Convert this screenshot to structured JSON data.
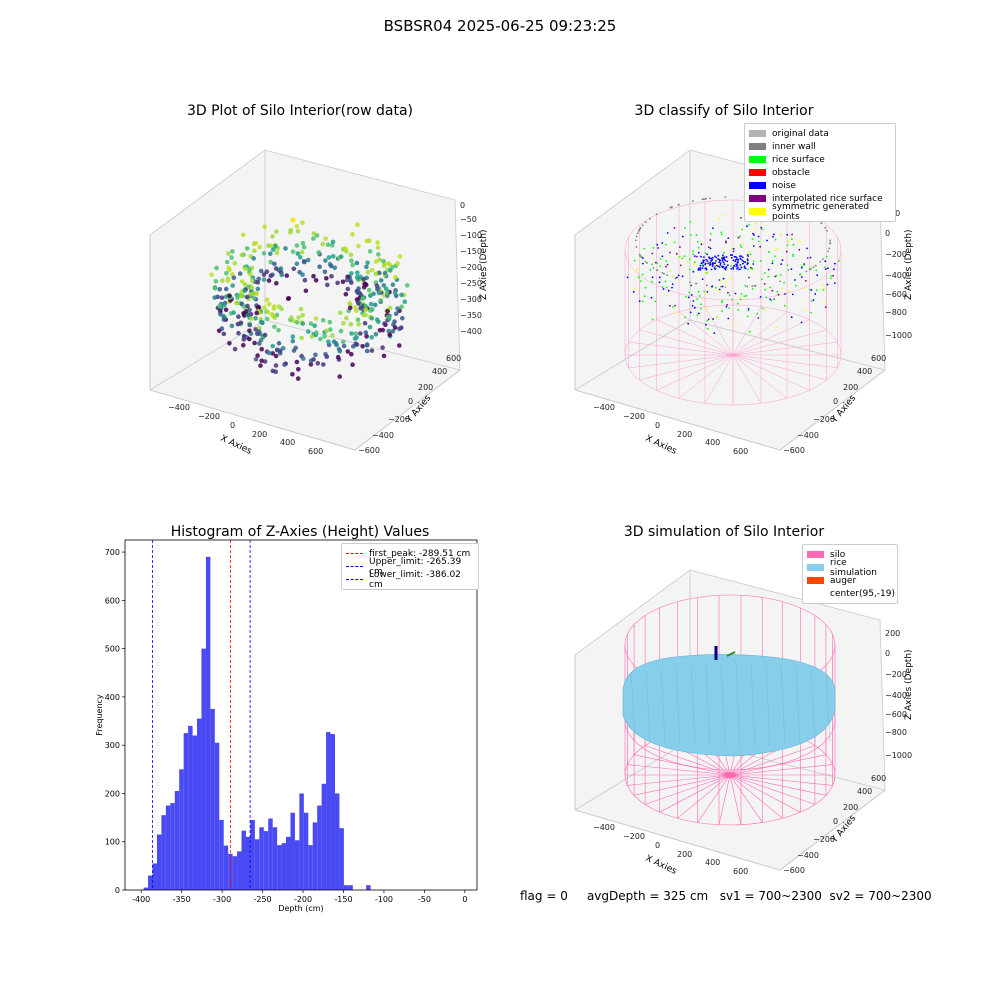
{
  "figure": {
    "suptitle": "BSBSR04 2025-06-25 09:23:25",
    "footer": {
      "flag": "flag = 0",
      "avg": "avgDepth = 325 cm",
      "sv1": "sv1 = 700~2300",
      "sv2": "sv2 = 700~2300"
    }
  },
  "colors": {
    "histogram_bar": "#4a4af5",
    "peak_line": "#ff0000",
    "limit_line": "#0000ff",
    "silo": "#ff69b4",
    "rice_sim": "#87ceeb",
    "auger": "#ff4500"
  },
  "chart_data": [
    {
      "type": "scatter",
      "title": "3D Plot of Silo Interior(row data)",
      "xlabel": "X Axies",
      "ylabel": "Y Axies",
      "zlabel": "Z Axies (Depth)",
      "xticks": [
        "−400",
        "−200",
        "0",
        "200",
        "400",
        "600"
      ],
      "yticks": [
        "−600",
        "−400",
        "−200",
        "0",
        "200",
        "400",
        "600"
      ],
      "zticks": [
        "−400",
        "−350",
        "−300",
        "−250",
        "−200",
        "−150",
        "−100",
        "−50",
        "0"
      ],
      "colormap": "viridis"
    },
    {
      "type": "scatter",
      "title": "3D classify of Silo Interior",
      "xlabel": "X Axies",
      "ylabel": "Y Axies",
      "zlabel": "Z Axies (Depth)",
      "xticks": [
        "−400",
        "−200",
        "0",
        "200",
        "400",
        "600"
      ],
      "yticks": [
        "−600",
        "−400",
        "−200",
        "0",
        "200",
        "400",
        "600"
      ],
      "zticks": [
        "−1000",
        "−800",
        "−600",
        "−400",
        "−200",
        "0",
        "200"
      ],
      "legend": [
        {
          "label": "original data",
          "color": "#b3b3b3"
        },
        {
          "label": "inner wall",
          "color": "#808080"
        },
        {
          "label": "rice surface",
          "color": "#00ff00"
        },
        {
          "label": "obstacle",
          "color": "#ff0000"
        },
        {
          "label": "noise",
          "color": "#0000ff"
        },
        {
          "label": "interpolated rice surface",
          "color": "#800080"
        },
        {
          "label": "symmetric generated points",
          "color": "#ffff00"
        }
      ]
    },
    {
      "type": "bar",
      "title": "Histogram of Z-Axies (Height) Values",
      "xlabel": "Depth (cm)",
      "ylabel": "Frequency",
      "xlim": [
        -420,
        15
      ],
      "ylim": [
        0,
        725
      ],
      "xticks": [
        -400,
        -350,
        -300,
        -250,
        -200,
        -150,
        -100,
        -50,
        0
      ],
      "yticks": [
        0,
        100,
        200,
        300,
        400,
        500,
        600,
        700
      ],
      "bin_edges_start": -397,
      "bin_width": 5.5,
      "values": [
        5,
        30,
        55,
        115,
        155,
        175,
        180,
        205,
        250,
        325,
        340,
        320,
        355,
        500,
        690,
        375,
        305,
        145,
        92,
        75,
        70,
        80,
        123,
        110,
        145,
        105,
        130,
        122,
        148,
        130,
        93,
        97,
        110,
        160,
        103,
        200,
        160,
        93,
        140,
        175,
        220,
        327,
        323,
        200,
        128,
        10,
        10,
        0,
        0,
        0,
        10
      ],
      "vlines": [
        {
          "label": "first_peak: -289.51 cm",
          "x": -289.51,
          "color": "#ff0000"
        },
        {
          "label": "Upper_limit: -265.39 cm",
          "x": -265.39,
          "color": "#0000ff"
        },
        {
          "label": "Lower_limit: -386.02 cm",
          "x": -386.02,
          "color": "#0000ff"
        }
      ]
    },
    {
      "type": "area",
      "title": "3D simulation of Silo Interior",
      "xlabel": "X Axies",
      "ylabel": "Y Axies",
      "zlabel": "Z Axies (Depth)",
      "xticks": [
        "−400",
        "−200",
        "0",
        "200",
        "400",
        "600"
      ],
      "yticks": [
        "−600",
        "−400",
        "−200",
        "0",
        "200",
        "400",
        "600"
      ],
      "zticks": [
        "−1000",
        "−800",
        "−600",
        "−400",
        "−200",
        "0",
        "200"
      ],
      "legend": [
        {
          "label": "silo",
          "color": "#ff69b4"
        },
        {
          "label": "rice simulation",
          "color": "#87ceeb"
        },
        {
          "label": "auger",
          "color": "#ff4500"
        },
        {
          "label": "center(95,-19)",
          "color": "#ffffff"
        }
      ]
    }
  ]
}
